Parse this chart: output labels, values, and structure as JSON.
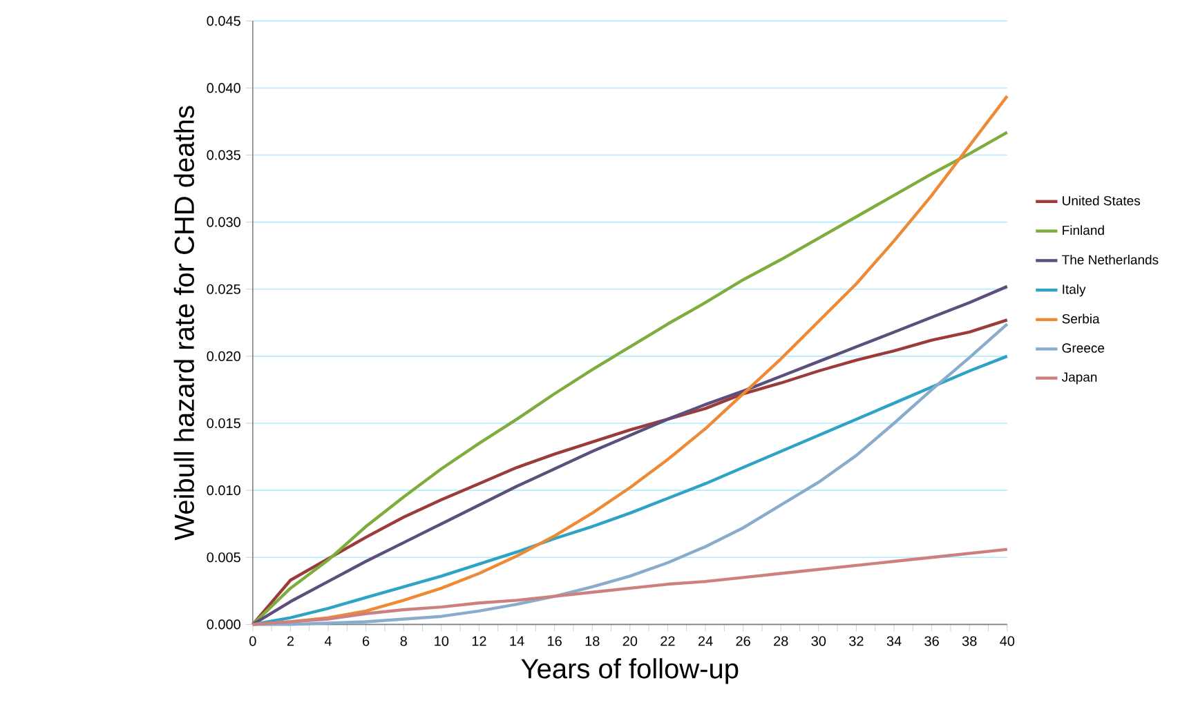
{
  "chart_data": {
    "type": "line",
    "xlabel": "Years of follow-up",
    "ylabel": "Weibull hazard rate for CHD deaths",
    "x": [
      0,
      2,
      4,
      6,
      8,
      10,
      12,
      14,
      16,
      18,
      20,
      22,
      24,
      26,
      28,
      30,
      32,
      34,
      36,
      38,
      40
    ],
    "xlim": [
      0,
      40
    ],
    "xticks": [
      0,
      2,
      4,
      6,
      8,
      10,
      12,
      14,
      16,
      18,
      20,
      22,
      24,
      26,
      28,
      30,
      32,
      34,
      36,
      38,
      40
    ],
    "ylim": [
      0,
      0.045
    ],
    "yticks": [
      {
        "value": 0,
        "label": "0.000"
      },
      {
        "value": 0.005,
        "label": "0.005"
      },
      {
        "value": 0.01,
        "label": "0.010"
      },
      {
        "value": 0.015,
        "label": "0.015"
      },
      {
        "value": 0.02,
        "label": "0.020"
      },
      {
        "value": 0.025,
        "label": "0.025"
      },
      {
        "value": 0.03,
        "label": "0.030"
      },
      {
        "value": 0.035,
        "label": "0.035"
      },
      {
        "value": 0.04,
        "label": "0.040"
      },
      {
        "value": 0.045,
        "label": "0.045"
      }
    ],
    "grid": "y",
    "legend": "right",
    "marker": "none",
    "line_style": "solid",
    "series": [
      {
        "name": "United States",
        "color": "#9b3b3a",
        "values": [
          0,
          0.0033,
          0.0049,
          0.0065,
          0.008,
          0.0093,
          0.0105,
          0.0117,
          0.0127,
          0.0136,
          0.0145,
          0.0153,
          0.0161,
          0.0172,
          0.018,
          0.0189,
          0.0197,
          0.0204,
          0.0212,
          0.0218,
          0.0227
        ]
      },
      {
        "name": "Finland",
        "color": "#7ead3e",
        "values": [
          0,
          0.0027,
          0.0048,
          0.0073,
          0.0095,
          0.0116,
          0.0135,
          0.0153,
          0.0172,
          0.019,
          0.0207,
          0.0224,
          0.024,
          0.0257,
          0.0272,
          0.0288,
          0.0304,
          0.032,
          0.0336,
          0.0351,
          0.0367
        ]
      },
      {
        "name": "The Netherlands",
        "color": "#5c4f7c",
        "values": [
          0,
          0.0017,
          0.0032,
          0.0047,
          0.0061,
          0.0075,
          0.0089,
          0.0103,
          0.0116,
          0.0129,
          0.0141,
          0.0153,
          0.0164,
          0.0174,
          0.0185,
          0.0196,
          0.0207,
          0.0218,
          0.0229,
          0.024,
          0.0252
        ]
      },
      {
        "name": "Italy",
        "color": "#2fa3c4",
        "values": [
          0,
          0.0005,
          0.0012,
          0.002,
          0.0028,
          0.0036,
          0.0045,
          0.0054,
          0.0064,
          0.0073,
          0.0083,
          0.0094,
          0.0105,
          0.0117,
          0.0129,
          0.0141,
          0.0153,
          0.0165,
          0.0177,
          0.0189,
          0.02
        ]
      },
      {
        "name": "Serbia",
        "color": "#ee8a35",
        "values": [
          0,
          0.0002,
          0.0005,
          0.001,
          0.0018,
          0.0027,
          0.0038,
          0.0051,
          0.0066,
          0.0083,
          0.0102,
          0.0123,
          0.0146,
          0.0172,
          0.0198,
          0.0226,
          0.0254,
          0.0286,
          0.032,
          0.0357,
          0.0394
        ]
      },
      {
        "name": "Greece",
        "color": "#8aaccc",
        "values": [
          0,
          0,
          0.0001,
          0.0002,
          0.0004,
          0.0006,
          0.001,
          0.0015,
          0.0021,
          0.0028,
          0.0036,
          0.0046,
          0.0058,
          0.0072,
          0.0089,
          0.0106,
          0.0126,
          0.015,
          0.0175,
          0.0199,
          0.0224
        ]
      },
      {
        "name": "Japan",
        "color": "#cc8080",
        "values": [
          0,
          0.0002,
          0.0004,
          0.0008,
          0.0011,
          0.0013,
          0.0016,
          0.0018,
          0.0021,
          0.0024,
          0.0027,
          0.003,
          0.0032,
          0.0035,
          0.0038,
          0.0041,
          0.0044,
          0.0047,
          0.005,
          0.0053,
          0.0056
        ]
      }
    ]
  }
}
